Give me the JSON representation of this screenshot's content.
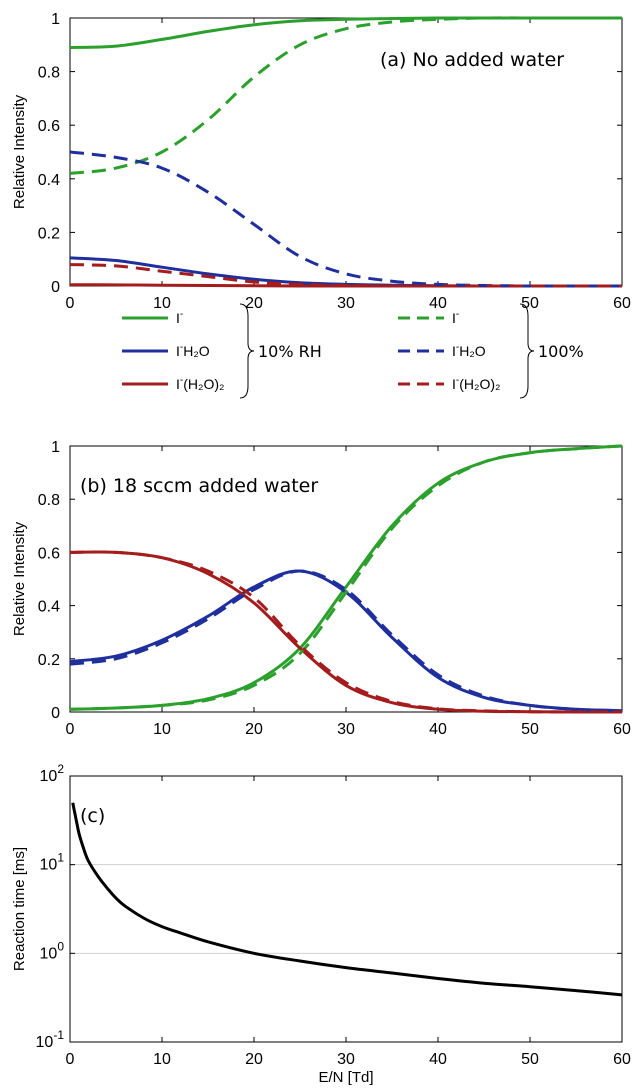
{
  "chart_data": [
    {
      "type": "line",
      "annotation": "(a) No added water",
      "ylabel": "Relative Intensity",
      "xlabel": "",
      "xlim": [
        0,
        60
      ],
      "ylim": [
        0,
        1
      ],
      "x_ticks": [
        "0",
        "10",
        "20",
        "30",
        "40",
        "50",
        "60"
      ],
      "y_ticks": [
        "0",
        "0.2",
        "0.4",
        "0.6",
        "0.8",
        "1"
      ],
      "grid": false,
      "x": [
        0,
        5,
        10,
        15,
        20,
        25,
        30,
        35,
        40,
        45,
        50,
        55,
        60
      ],
      "series": [
        {
          "name": "I⁻",
          "group": "10% RH",
          "color": "#2ca02c",
          "dash": "solid",
          "values": [
            0.89,
            0.895,
            0.92,
            0.95,
            0.975,
            0.99,
            0.995,
            0.998,
            1,
            1,
            1,
            1,
            1
          ]
        },
        {
          "name": "I⁻H₂O",
          "group": "10% RH",
          "color": "#1f2f9e",
          "dash": "solid",
          "values": [
            0.105,
            0.095,
            0.07,
            0.045,
            0.025,
            0.012,
            0.006,
            0.003,
            0.001,
            0,
            0,
            0,
            0
          ]
        },
        {
          "name": "I⁻(H₂O)₂",
          "group": "10% RH",
          "color": "#a51c1c",
          "dash": "solid",
          "values": [
            0.005,
            0.004,
            0.003,
            0.002,
            0.001,
            0,
            0,
            0,
            0,
            0,
            0,
            0,
            0
          ]
        },
        {
          "name": "I⁻",
          "group": "100%",
          "color": "#2ca02c",
          "dash": "dashed",
          "values": [
            0.42,
            0.44,
            0.5,
            0.62,
            0.78,
            0.9,
            0.96,
            0.985,
            0.995,
            1,
            1,
            1,
            1
          ]
        },
        {
          "name": "I⁻H₂O",
          "group": "100%",
          "color": "#1f2f9e",
          "dash": "dashed",
          "values": [
            0.5,
            0.48,
            0.44,
            0.35,
            0.23,
            0.11,
            0.045,
            0.018,
            0.006,
            0.002,
            0,
            0,
            0
          ]
        },
        {
          "name": "I⁻(H₂O)₂",
          "group": "100%",
          "color": "#a51c1c",
          "dash": "dashed",
          "values": [
            0.08,
            0.075,
            0.055,
            0.035,
            0.015,
            0.006,
            0.002,
            0,
            0,
            0,
            0,
            0,
            0
          ]
        }
      ]
    },
    {
      "type": "line",
      "annotation": "(b) 18 sccm added water",
      "ylabel": "Relative Intensity",
      "xlabel": "",
      "xlim": [
        0,
        60
      ],
      "ylim": [
        0,
        1
      ],
      "x_ticks": [
        "0",
        "10",
        "20",
        "30",
        "40",
        "50",
        "60"
      ],
      "y_ticks": [
        "0",
        "0.2",
        "0.4",
        "0.6",
        "0.8",
        "1"
      ],
      "grid": false,
      "x": [
        0,
        5,
        10,
        15,
        20,
        25,
        30,
        35,
        40,
        45,
        50,
        55,
        60
      ],
      "series": [
        {
          "name": "I⁻",
          "group": "10% RH",
          "color": "#2ca02c",
          "dash": "solid",
          "values": [
            0.01,
            0.015,
            0.025,
            0.05,
            0.11,
            0.24,
            0.47,
            0.7,
            0.86,
            0.94,
            0.975,
            0.99,
            1
          ]
        },
        {
          "name": "I⁻H₂O",
          "group": "10% RH",
          "color": "#1f2f9e",
          "dash": "solid",
          "values": [
            0.19,
            0.21,
            0.27,
            0.36,
            0.47,
            0.53,
            0.45,
            0.28,
            0.13,
            0.055,
            0.025,
            0.01,
            0.005
          ]
        },
        {
          "name": "I⁻(H₂O)₂",
          "group": "10% RH",
          "color": "#a51c1c",
          "dash": "solid",
          "values": [
            0.6,
            0.6,
            0.58,
            0.52,
            0.41,
            0.24,
            0.1,
            0.035,
            0.01,
            0.003,
            0.001,
            0,
            0
          ]
        },
        {
          "name": "I⁻",
          "group": "100%",
          "color": "#2ca02c",
          "dash": "dashed",
          "values": [
            0.01,
            0.015,
            0.025,
            0.045,
            0.1,
            0.22,
            0.45,
            0.69,
            0.85,
            0.94,
            0.975,
            0.99,
            1
          ]
        },
        {
          "name": "I⁻H₂O",
          "group": "100%",
          "color": "#1f2f9e",
          "dash": "dashed",
          "values": [
            0.18,
            0.2,
            0.26,
            0.35,
            0.46,
            0.53,
            0.46,
            0.29,
            0.14,
            0.06,
            0.025,
            0.01,
            0.005
          ]
        },
        {
          "name": "I⁻(H₂O)₂",
          "group": "100%",
          "color": "#a51c1c",
          "dash": "dashed",
          "values": [
            0.6,
            0.6,
            0.58,
            0.53,
            0.43,
            0.25,
            0.11,
            0.04,
            0.012,
            0.004,
            0.001,
            0,
            0
          ]
        }
      ]
    },
    {
      "type": "line",
      "annotation": "(c)",
      "ylabel": "Reaction time [ms]",
      "xlabel": "E/N [Td]",
      "xlim": [
        0,
        60
      ],
      "ylim": [
        0.1,
        100
      ],
      "yscale": "log",
      "x_ticks": [
        "0",
        "10",
        "20",
        "30",
        "40",
        "50",
        "60"
      ],
      "y_ticks": [
        {
          "base": "10",
          "exp": "-1"
        },
        {
          "base": "10",
          "exp": "0"
        },
        {
          "base": "10",
          "exp": "1"
        },
        {
          "base": "10",
          "exp": "2"
        }
      ],
      "grid": "horizontal",
      "x": [
        0.3,
        0.6,
        1,
        1.5,
        2,
        3,
        4,
        5,
        6,
        8,
        10,
        12,
        15,
        20,
        25,
        30,
        35,
        40,
        45,
        50,
        55,
        60
      ],
      "series": [
        {
          "name": "",
          "color": "#000000",
          "dash": "solid",
          "values": [
            50,
            35,
            22,
            15,
            11,
            7.5,
            5.5,
            4.2,
            3.4,
            2.5,
            2.0,
            1.7,
            1.35,
            1.0,
            0.82,
            0.69,
            0.6,
            0.52,
            0.46,
            0.42,
            0.38,
            0.34
          ]
        }
      ]
    }
  ],
  "legend": {
    "group_a": "10% RH",
    "group_b": "100%",
    "entries_a": [
      {
        "base": "I",
        "sup": "-",
        "rest": "",
        "color": "#2ca02c",
        "dash": "solid"
      },
      {
        "base": "I",
        "sup": "-",
        "rest": "H₂O",
        "color": "#1f2f9e",
        "dash": "solid"
      },
      {
        "base": "I",
        "sup": "-",
        "rest": "(H₂O)₂",
        "color": "#a51c1c",
        "dash": "solid"
      }
    ],
    "entries_b": [
      {
        "base": "I",
        "sup": "-",
        "rest": "",
        "color": "#2ca02c",
        "dash": "dashed"
      },
      {
        "base": "I",
        "sup": "-",
        "rest": "H₂O",
        "color": "#1f2f9e",
        "dash": "dashed"
      },
      {
        "base": "I",
        "sup": "-",
        "rest": "(H₂O)₂",
        "color": "#a51c1c",
        "dash": "dashed"
      }
    ]
  }
}
